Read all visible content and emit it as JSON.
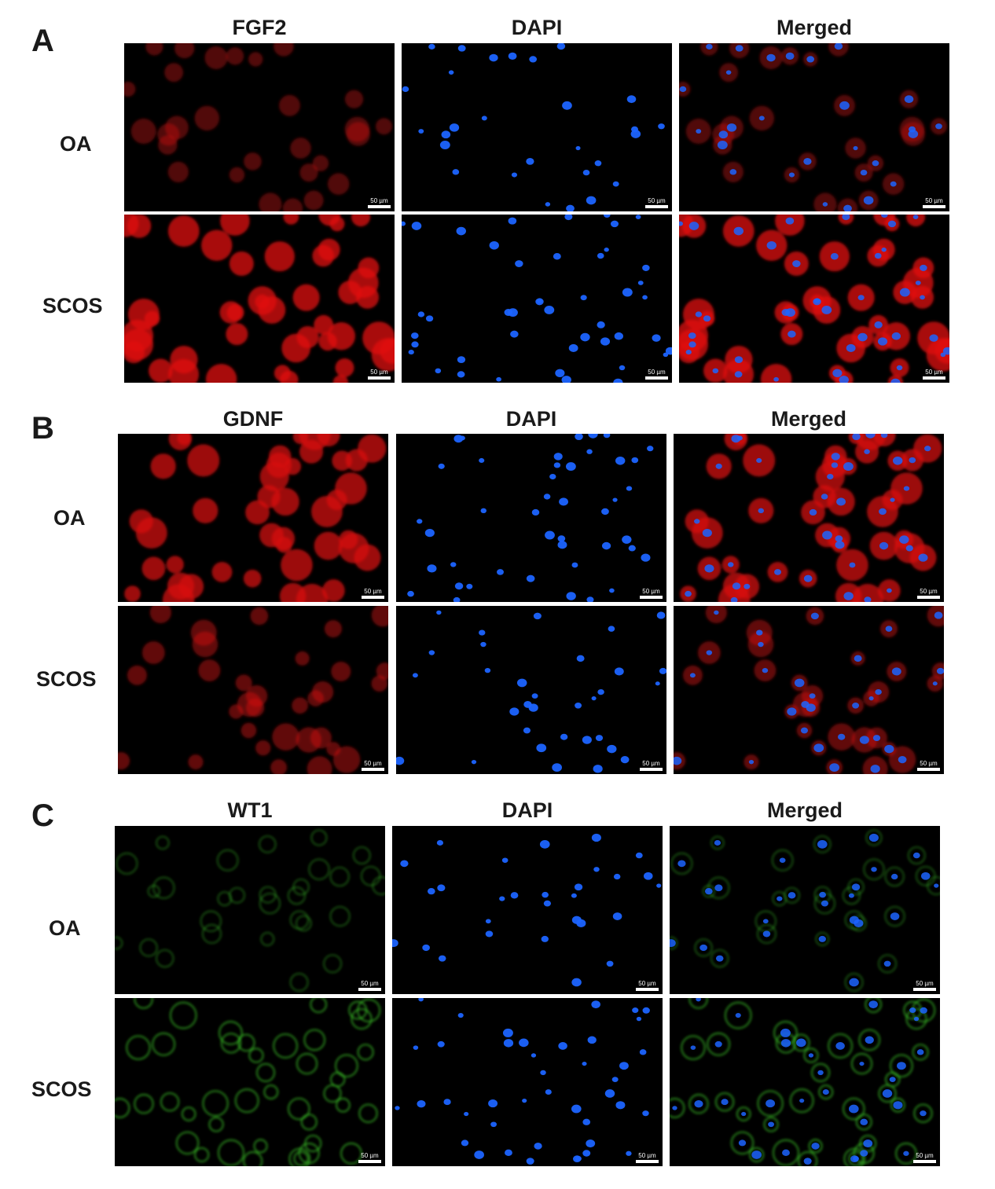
{
  "scale_bar_label": "50 µm",
  "colors": {
    "fgf2_stain": "#e01010",
    "gdnf_stain": "#d81010",
    "wt1_stain": "#3fd22a",
    "dapi_stain": "#1c64ff",
    "background": "#000000"
  },
  "panels": [
    {
      "letter": "A",
      "columns": [
        "FGF2",
        "DAPI",
        "Merged"
      ],
      "rows": [
        {
          "label": "OA",
          "marker_intensity": 0.3,
          "marker_color": "fgf2_stain"
        },
        {
          "label": "SCOS",
          "marker_intensity": 0.95,
          "marker_color": "fgf2_stain"
        }
      ]
    },
    {
      "letter": "B",
      "columns": [
        "GDNF",
        "DAPI",
        "Merged"
      ],
      "rows": [
        {
          "label": "OA",
          "marker_intensity": 0.9,
          "marker_color": "gdnf_stain"
        },
        {
          "label": "SCOS",
          "marker_intensity": 0.45,
          "marker_color": "gdnf_stain"
        }
      ]
    },
    {
      "letter": "C",
      "columns": [
        "WT1",
        "DAPI",
        "Merged"
      ],
      "rows": [
        {
          "label": "OA",
          "marker_intensity": 0.35,
          "marker_color": "wt1_stain"
        },
        {
          "label": "SCOS",
          "marker_intensity": 0.85,
          "marker_color": "wt1_stain"
        }
      ]
    }
  ]
}
